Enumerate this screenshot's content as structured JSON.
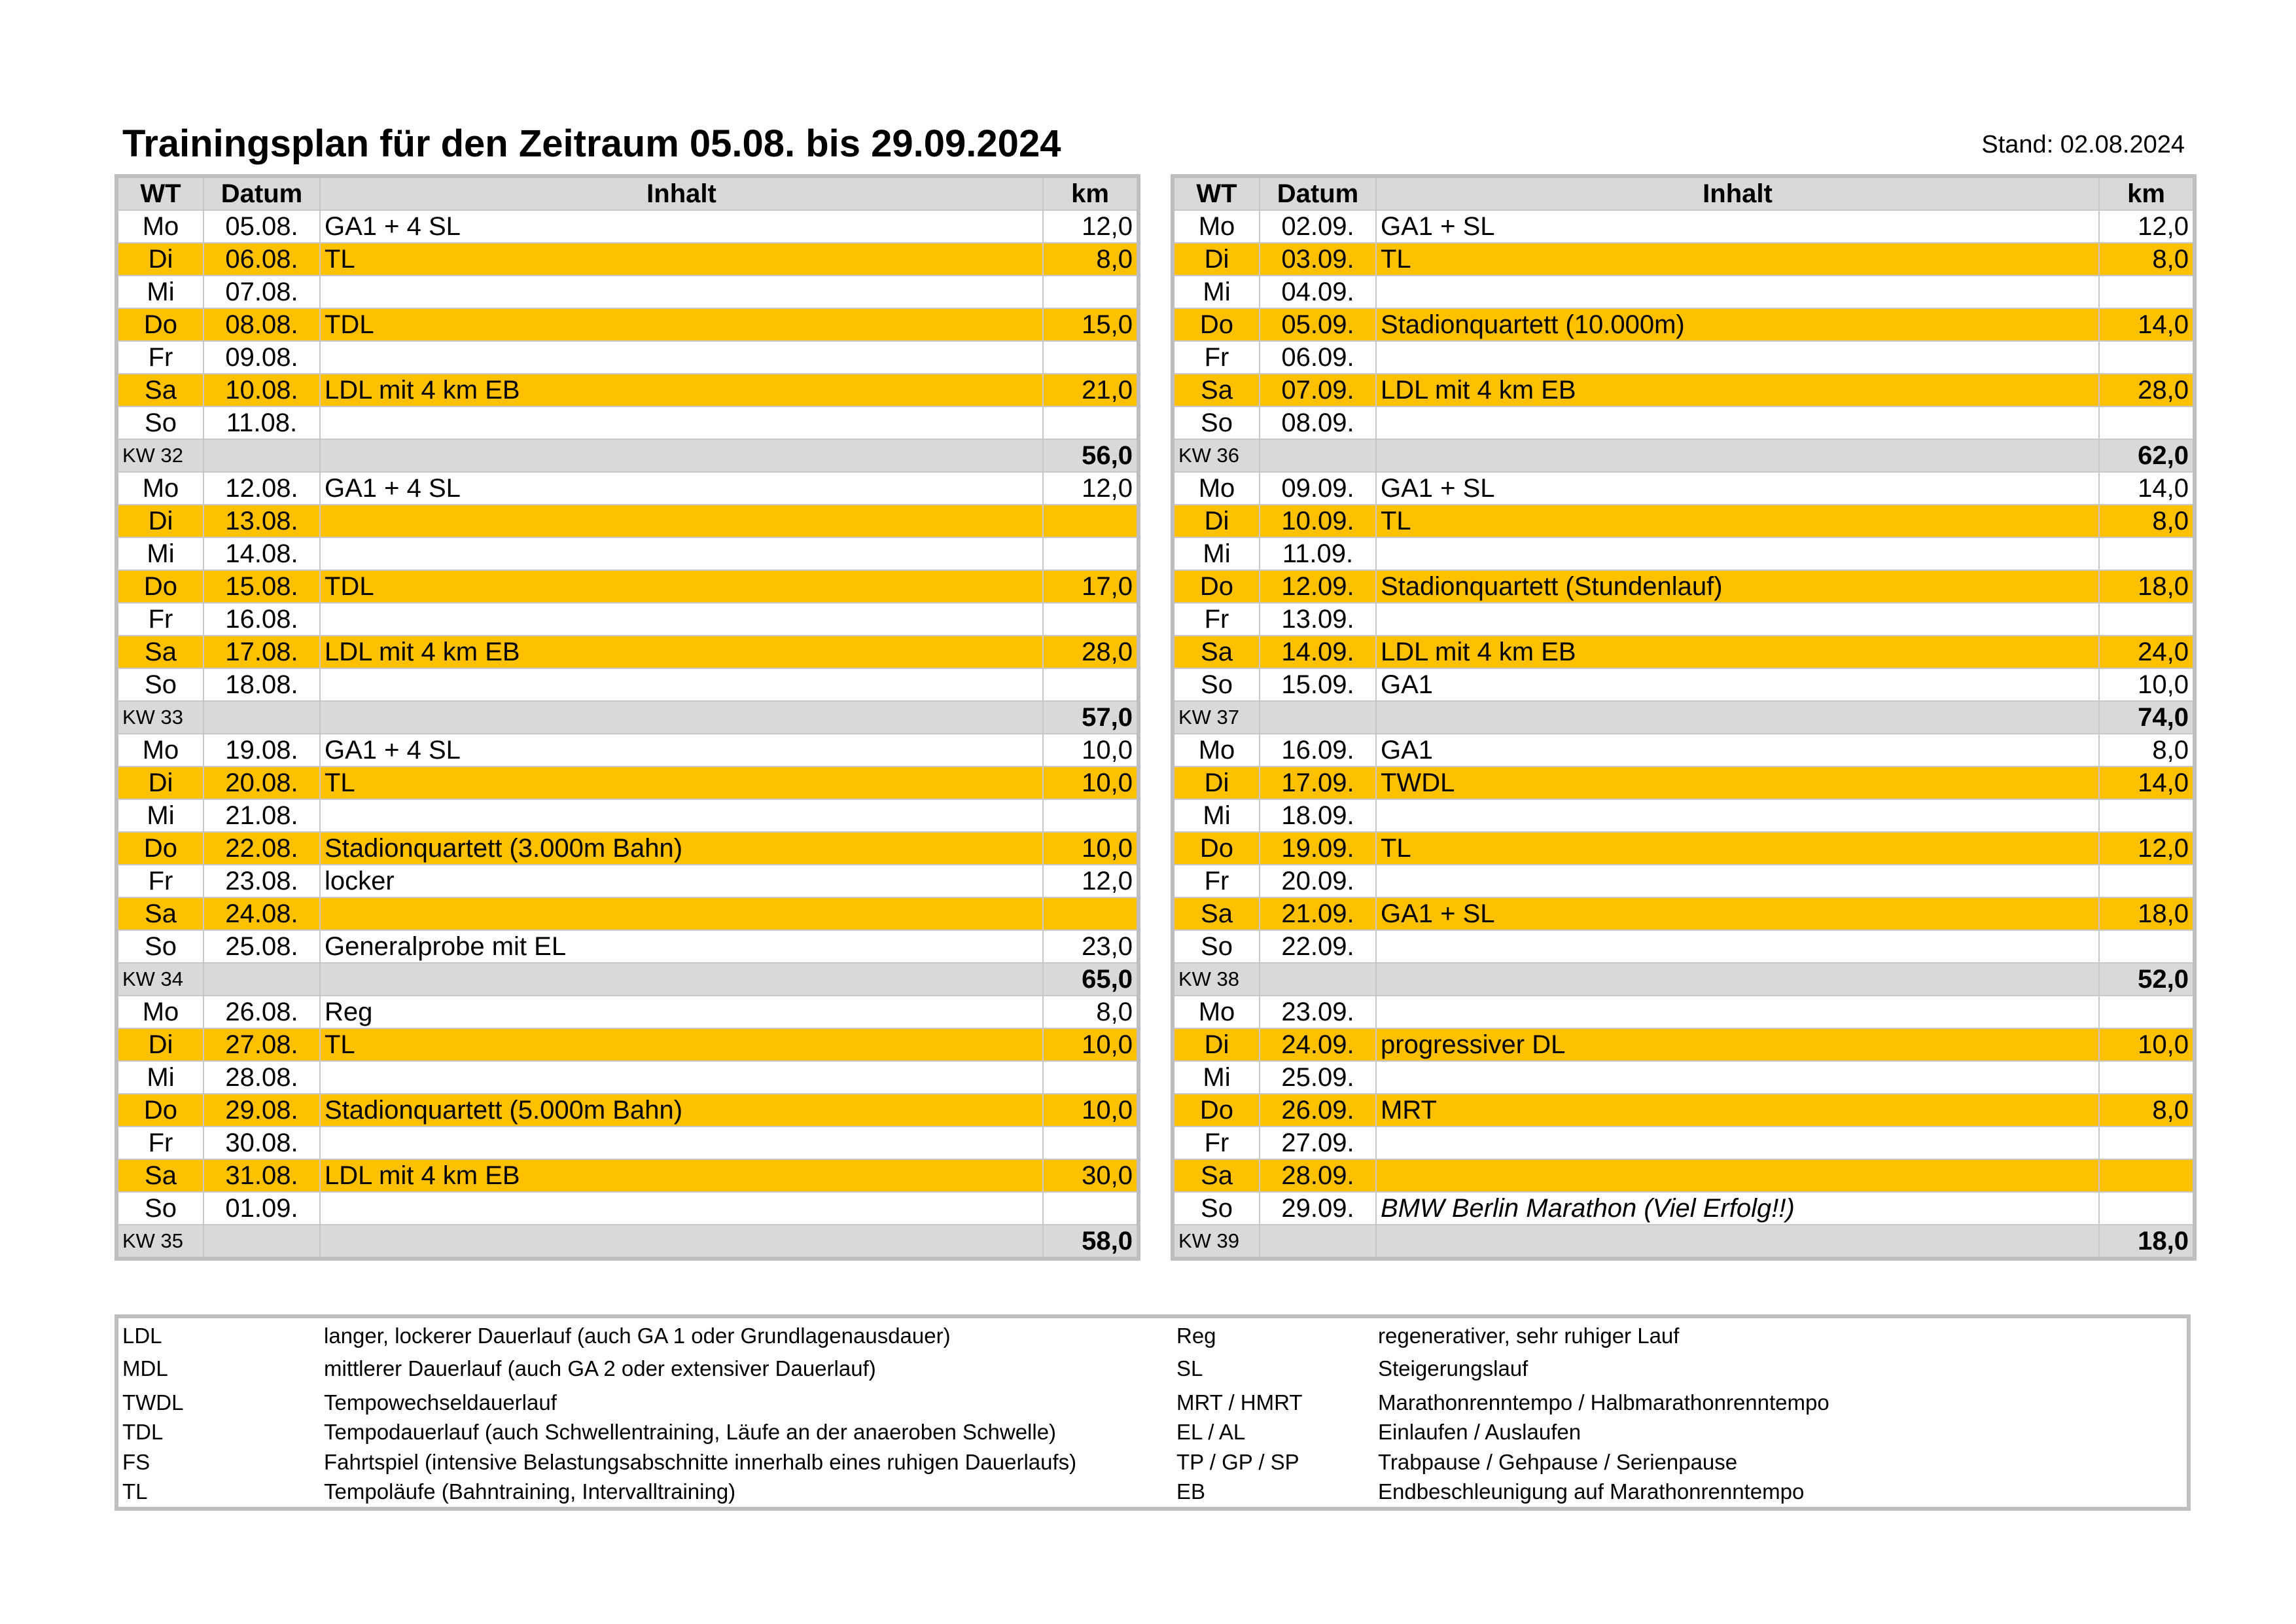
{
  "title": "Trainingsplan für den Zeitraum 05.08. bis 29.09.2024",
  "stand": "Stand: 02.08.2024",
  "tables": [
    {
      "header": [
        "WT",
        "Datum",
        "Inhalt",
        "km"
      ],
      "weeks": [
        {
          "days": [
            [
              "Mo",
              "05.08.",
              "GA1 + 4 SL",
              "12,0"
            ],
            [
              "Di",
              "06.08.",
              "TL",
              "8,0"
            ],
            [
              "Mi",
              "07.08.",
              null,
              null
            ],
            [
              "Do",
              "08.08.",
              "TDL",
              "15,0"
            ],
            [
              "Fr",
              "09.08.",
              null,
              null
            ],
            [
              "Sa",
              "10.08.",
              "LDL mit 4 km EB",
              "21,0"
            ],
            [
              "So",
              "11.08.",
              null,
              null
            ]
          ],
          "label": "KW 32",
          "total": "56,0"
        },
        {
          "days": [
            [
              "Mo",
              "12.08.",
              "GA1 + 4 SL",
              "12,0"
            ],
            [
              "Di",
              "13.08.",
              null,
              null
            ],
            [
              "Mi",
              "14.08.",
              null,
              null
            ],
            [
              "Do",
              "15.08.",
              "TDL",
              "17,0"
            ],
            [
              "Fr",
              "16.08.",
              null,
              null
            ],
            [
              "Sa",
              "17.08.",
              "LDL mit 4 km EB",
              "28,0"
            ],
            [
              "So",
              "18.08.",
              null,
              null
            ]
          ],
          "label": "KW 33",
          "total": "57,0"
        },
        {
          "days": [
            [
              "Mo",
              "19.08.",
              "GA1 + 4 SL",
              "10,0"
            ],
            [
              "Di",
              "20.08.",
              "TL",
              "10,0"
            ],
            [
              "Mi",
              "21.08.",
              null,
              null
            ],
            [
              "Do",
              "22.08.",
              "Stadionquartett (3.000m Bahn)",
              "10,0"
            ],
            [
              "Fr",
              "23.08.",
              "locker",
              "12,0"
            ],
            [
              "Sa",
              "24.08.",
              null,
              null
            ],
            [
              "So",
              "25.08.",
              "Generalprobe mit EL",
              "23,0"
            ]
          ],
          "label": "KW 34",
          "total": "65,0"
        },
        {
          "days": [
            [
              "Mo",
              "26.08.",
              "Reg",
              "8,0"
            ],
            [
              "Di",
              "27.08.",
              "TL",
              "10,0"
            ],
            [
              "Mi",
              "28.08.",
              null,
              null
            ],
            [
              "Do",
              "29.08.",
              "Stadionquartett (5.000m Bahn)",
              "10,0"
            ],
            [
              "Fr",
              "30.08.",
              null,
              null
            ],
            [
              "Sa",
              "31.08.",
              "LDL mit 4 km EB",
              "30,0"
            ],
            [
              "So",
              "01.09.",
              null,
              null
            ]
          ],
          "label": "KW 35",
          "total": "58,0"
        }
      ]
    },
    {
      "header": [
        "WT",
        "Datum",
        "Inhalt",
        "km"
      ],
      "weeks": [
        {
          "days": [
            [
              "Mo",
              "02.09.",
              "GA1 + SL",
              "12,0"
            ],
            [
              "Di",
              "03.09.",
              "TL",
              "8,0"
            ],
            [
              "Mi",
              "04.09.",
              null,
              null
            ],
            [
              "Do",
              "05.09.",
              "Stadionquartett (10.000m)",
              "14,0"
            ],
            [
              "Fr",
              "06.09.",
              null,
              null
            ],
            [
              "Sa",
              "07.09.",
              "LDL mit 4 km EB",
              "28,0"
            ],
            [
              "So",
              "08.09.",
              null,
              null
            ]
          ],
          "label": "KW 36",
          "total": "62,0"
        },
        {
          "days": [
            [
              "Mo",
              "09.09.",
              "GA1 + SL",
              "14,0"
            ],
            [
              "Di",
              "10.09.",
              "TL",
              "8,0"
            ],
            [
              "Mi",
              "11.09.",
              null,
              null
            ],
            [
              "Do",
              "12.09.",
              "Stadionquartett (Stundenlauf)",
              "18,0"
            ],
            [
              "Fr",
              "13.09.",
              null,
              null
            ],
            [
              "Sa",
              "14.09.",
              "LDL mit 4 km EB",
              "24,0"
            ],
            [
              "So",
              "15.09.",
              "GA1",
              "10,0"
            ]
          ],
          "label": "KW 37",
          "total": "74,0"
        },
        {
          "days": [
            [
              "Mo",
              "16.09.",
              "GA1",
              "8,0"
            ],
            [
              "Di",
              "17.09.",
              "TWDL",
              "14,0"
            ],
            [
              "Mi",
              "18.09.",
              null,
              null
            ],
            [
              "Do",
              "19.09.",
              "TL",
              "12,0"
            ],
            [
              "Fr",
              "20.09.",
              null,
              null
            ],
            [
              "Sa",
              "21.09.",
              "GA1 + SL",
              "18,0"
            ],
            [
              "So",
              "22.09.",
              null,
              null
            ]
          ],
          "label": "KW 38",
          "total": "52,0"
        },
        {
          "days": [
            [
              "Mo",
              "23.09.",
              null,
              null
            ],
            [
              "Di",
              "24.09.",
              "progressiver DL",
              "10,0"
            ],
            [
              "Mi",
              "25.09.",
              null,
              null
            ],
            [
              "Do",
              "26.09.",
              "MRT",
              "8,0"
            ],
            [
              "Fr",
              "27.09.",
              null,
              null
            ],
            [
              "Sa",
              "28.09.",
              null,
              null
            ],
            [
              "So",
              "29.09.",
              "BMW Berlin Marathon (Viel Erfolg!!)",
              null
            ]
          ],
          "label": "KW 39",
          "total": "18,0"
        }
      ]
    }
  ],
  "legend": [
    [
      [
        "LDL",
        "langer, lockerer Dauerlauf (auch GA 1 oder Grundlagenausdauer)"
      ],
      [
        "MDL",
        "mittlerer Dauerlauf (auch GA 2 oder extensiver Dauerlauf)"
      ],
      [
        "TWDL",
        "Tempowechseldauerlauf"
      ],
      [
        "TDL",
        "Tempodauerlauf (auch Schwellentraining, Läufe an der anaeroben Schwelle)"
      ],
      [
        "FS",
        "Fahrtspiel (intensive Belastungsabschnitte innerhalb eines ruhigen Dauerlaufs)"
      ],
      [
        "TL",
        "Tempoläufe (Bahntraining, Intervalltraining)"
      ]
    ],
    [
      [
        "Reg",
        "regenerativer, sehr ruhiger Lauf"
      ],
      [
        "SL",
        "Steigerungslauf"
      ],
      [
        "MRT / HMRT",
        "Marathonrenntempo / Halbmarathonrenntempo"
      ],
      [
        "EL / AL",
        "Einlaufen / Auslaufen"
      ],
      [
        "TP / GP / SP",
        "Trabpause / Gehpause / Serienpause"
      ],
      [
        "EB",
        "Endbeschleunigung auf Marathonrenntempo"
      ]
    ]
  ]
}
